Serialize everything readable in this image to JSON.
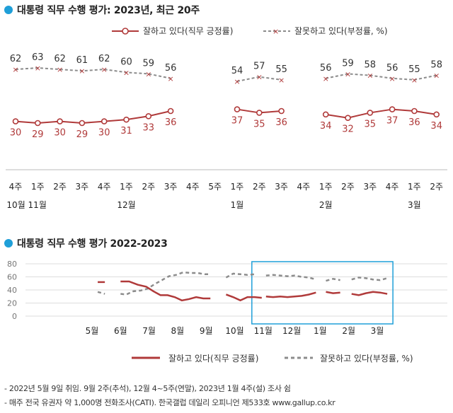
{
  "colors": {
    "approve": "#b03a3a",
    "disapprove": "#8c8c8c",
    "accent_dot": "#1f9fd8",
    "box": "#1f9fd8",
    "grid": "#dddddd"
  },
  "top": {
    "title": "대통령 직무 수행 평가: 2023년, 최근 20주",
    "legend_approve": "잘하고 있다(직무 긍정률)",
    "legend_disapprove": "잘못하고 있다(부정률, %)"
  },
  "bottom": {
    "title": "대통령 직무 수행 평가 2022-2023",
    "legend_approve": "잘하고 있다(직무 긍정률)",
    "legend_disapprove": "잘못하고 있다(부정률, %)"
  },
  "notes": [
    "- 2022년 5월 9일 취임. 9월 2주(추석), 12월 4~5주(연말), 2023년 1월 4주(설) 조사 쉼",
    "- 매주 전국 유권자 약 1,000명 전화조사(CATI). 한국갤럽 데일리 오피니언 제533호 www.gallup.co.kr"
  ],
  "chart_data": [
    {
      "type": "line",
      "title": "대통령 직무 수행 평가: 2023년, 최근 20주",
      "categories": [
        "4주",
        "1주",
        "2주",
        "3주",
        "4주",
        "1주",
        "2주",
        "3주",
        "4주",
        "5주",
        "1주",
        "2주",
        "3주",
        "4주",
        "1주",
        "2주",
        "3주",
        "4주",
        "1주",
        "2주"
      ],
      "month_labels": [
        {
          "label": "10월 11월",
          "index": 0.5
        },
        {
          "label": "12월",
          "index": 5
        },
        {
          "label": "1월",
          "index": 10
        },
        {
          "label": "2월",
          "index": 14
        },
        {
          "label": "3월",
          "index": 18
        }
      ],
      "series": [
        {
          "name": "잘하고 있다(직무 긍정률)",
          "values": [
            30,
            29,
            30,
            29,
            30,
            31,
            33,
            36,
            null,
            null,
            37,
            35,
            36,
            null,
            34,
            32,
            35,
            37,
            36,
            34
          ]
        },
        {
          "name": "잘못하고 있다(부정률, %)",
          "values": [
            62,
            63,
            62,
            61,
            62,
            60,
            59,
            56,
            null,
            null,
            54,
            57,
            55,
            null,
            56,
            59,
            58,
            56,
            55,
            58
          ]
        }
      ],
      "ylim": [
        20,
        75
      ]
    },
    {
      "type": "line",
      "title": "대통령 직무 수행 평가 2022-2023",
      "x_labels": [
        "5월",
        "6월",
        "7월",
        "8월",
        "9월",
        "10월",
        "11월",
        "12월",
        "1월",
        "2월",
        "3월"
      ],
      "yticks": [
        0,
        20,
        40,
        60,
        80
      ],
      "ylim": [
        0,
        80
      ],
      "series": [
        {
          "name": "잘하고 있다(직무 긍정률)",
          "segments": [
            [
              [
                0.2,
                52
              ],
              [
                0.45,
                52
              ]
            ],
            [
              [
                1.0,
                53
              ],
              [
                1.3,
                53
              ],
              [
                1.6,
                48
              ],
              [
                1.9,
                45
              ],
              [
                2.15,
                38
              ],
              [
                2.4,
                32
              ],
              [
                2.65,
                32
              ],
              [
                2.9,
                29
              ],
              [
                3.15,
                24
              ],
              [
                3.4,
                26
              ],
              [
                3.65,
                29
              ],
              [
                3.9,
                27
              ],
              [
                4.15,
                27
              ]
            ],
            [
              [
                4.7,
                33
              ],
              [
                4.95,
                29
              ],
              [
                5.2,
                24
              ],
              [
                5.45,
                29
              ],
              [
                5.7,
                29
              ],
              [
                5.95,
                28
              ]
            ],
            [
              [
                6.1,
                30
              ],
              [
                6.35,
                29
              ],
              [
                6.6,
                30
              ],
              [
                6.85,
                29
              ],
              [
                7.1,
                30
              ],
              [
                7.35,
                31
              ],
              [
                7.6,
                33
              ],
              [
                7.85,
                36
              ]
            ],
            [
              [
                8.2,
                37
              ],
              [
                8.45,
                35
              ],
              [
                8.7,
                36
              ]
            ],
            [
              [
                9.1,
                34
              ],
              [
                9.35,
                32
              ],
              [
                9.6,
                35
              ],
              [
                9.85,
                37
              ],
              [
                10.1,
                36
              ],
              [
                10.35,
                34
              ]
            ]
          ]
        },
        {
          "name": "잘못하고 있다(부정률, %)",
          "segments": [
            [
              [
                0.2,
                37
              ],
              [
                0.45,
                34
              ]
            ],
            [
              [
                1.0,
                34
              ],
              [
                1.2,
                33
              ],
              [
                1.45,
                38
              ],
              [
                1.7,
                39
              ],
              [
                1.95,
                42
              ],
              [
                2.2,
                49
              ],
              [
                2.45,
                55
              ],
              [
                2.7,
                61
              ],
              [
                2.95,
                63
              ],
              [
                3.2,
                67
              ],
              [
                3.45,
                66
              ],
              [
                3.7,
                66
              ],
              [
                3.95,
                64
              ],
              [
                4.15,
                64
              ]
            ],
            [
              [
                4.7,
                59
              ],
              [
                4.95,
                65
              ],
              [
                5.2,
                64
              ],
              [
                5.45,
                63
              ],
              [
                5.7,
                64
              ]
            ],
            [
              [
                6.1,
                62
              ],
              [
                6.35,
                63
              ],
              [
                6.6,
                62
              ],
              [
                6.85,
                61
              ],
              [
                7.1,
                62
              ],
              [
                7.35,
                60
              ],
              [
                7.6,
                59
              ],
              [
                7.85,
                56
              ]
            ],
            [
              [
                8.2,
                54
              ],
              [
                8.45,
                57
              ],
              [
                8.7,
                55
              ]
            ],
            [
              [
                9.1,
                56
              ],
              [
                9.35,
                59
              ],
              [
                9.6,
                58
              ],
              [
                9.85,
                56
              ],
              [
                10.1,
                55
              ],
              [
                10.35,
                58
              ]
            ]
          ]
        }
      ]
    }
  ]
}
